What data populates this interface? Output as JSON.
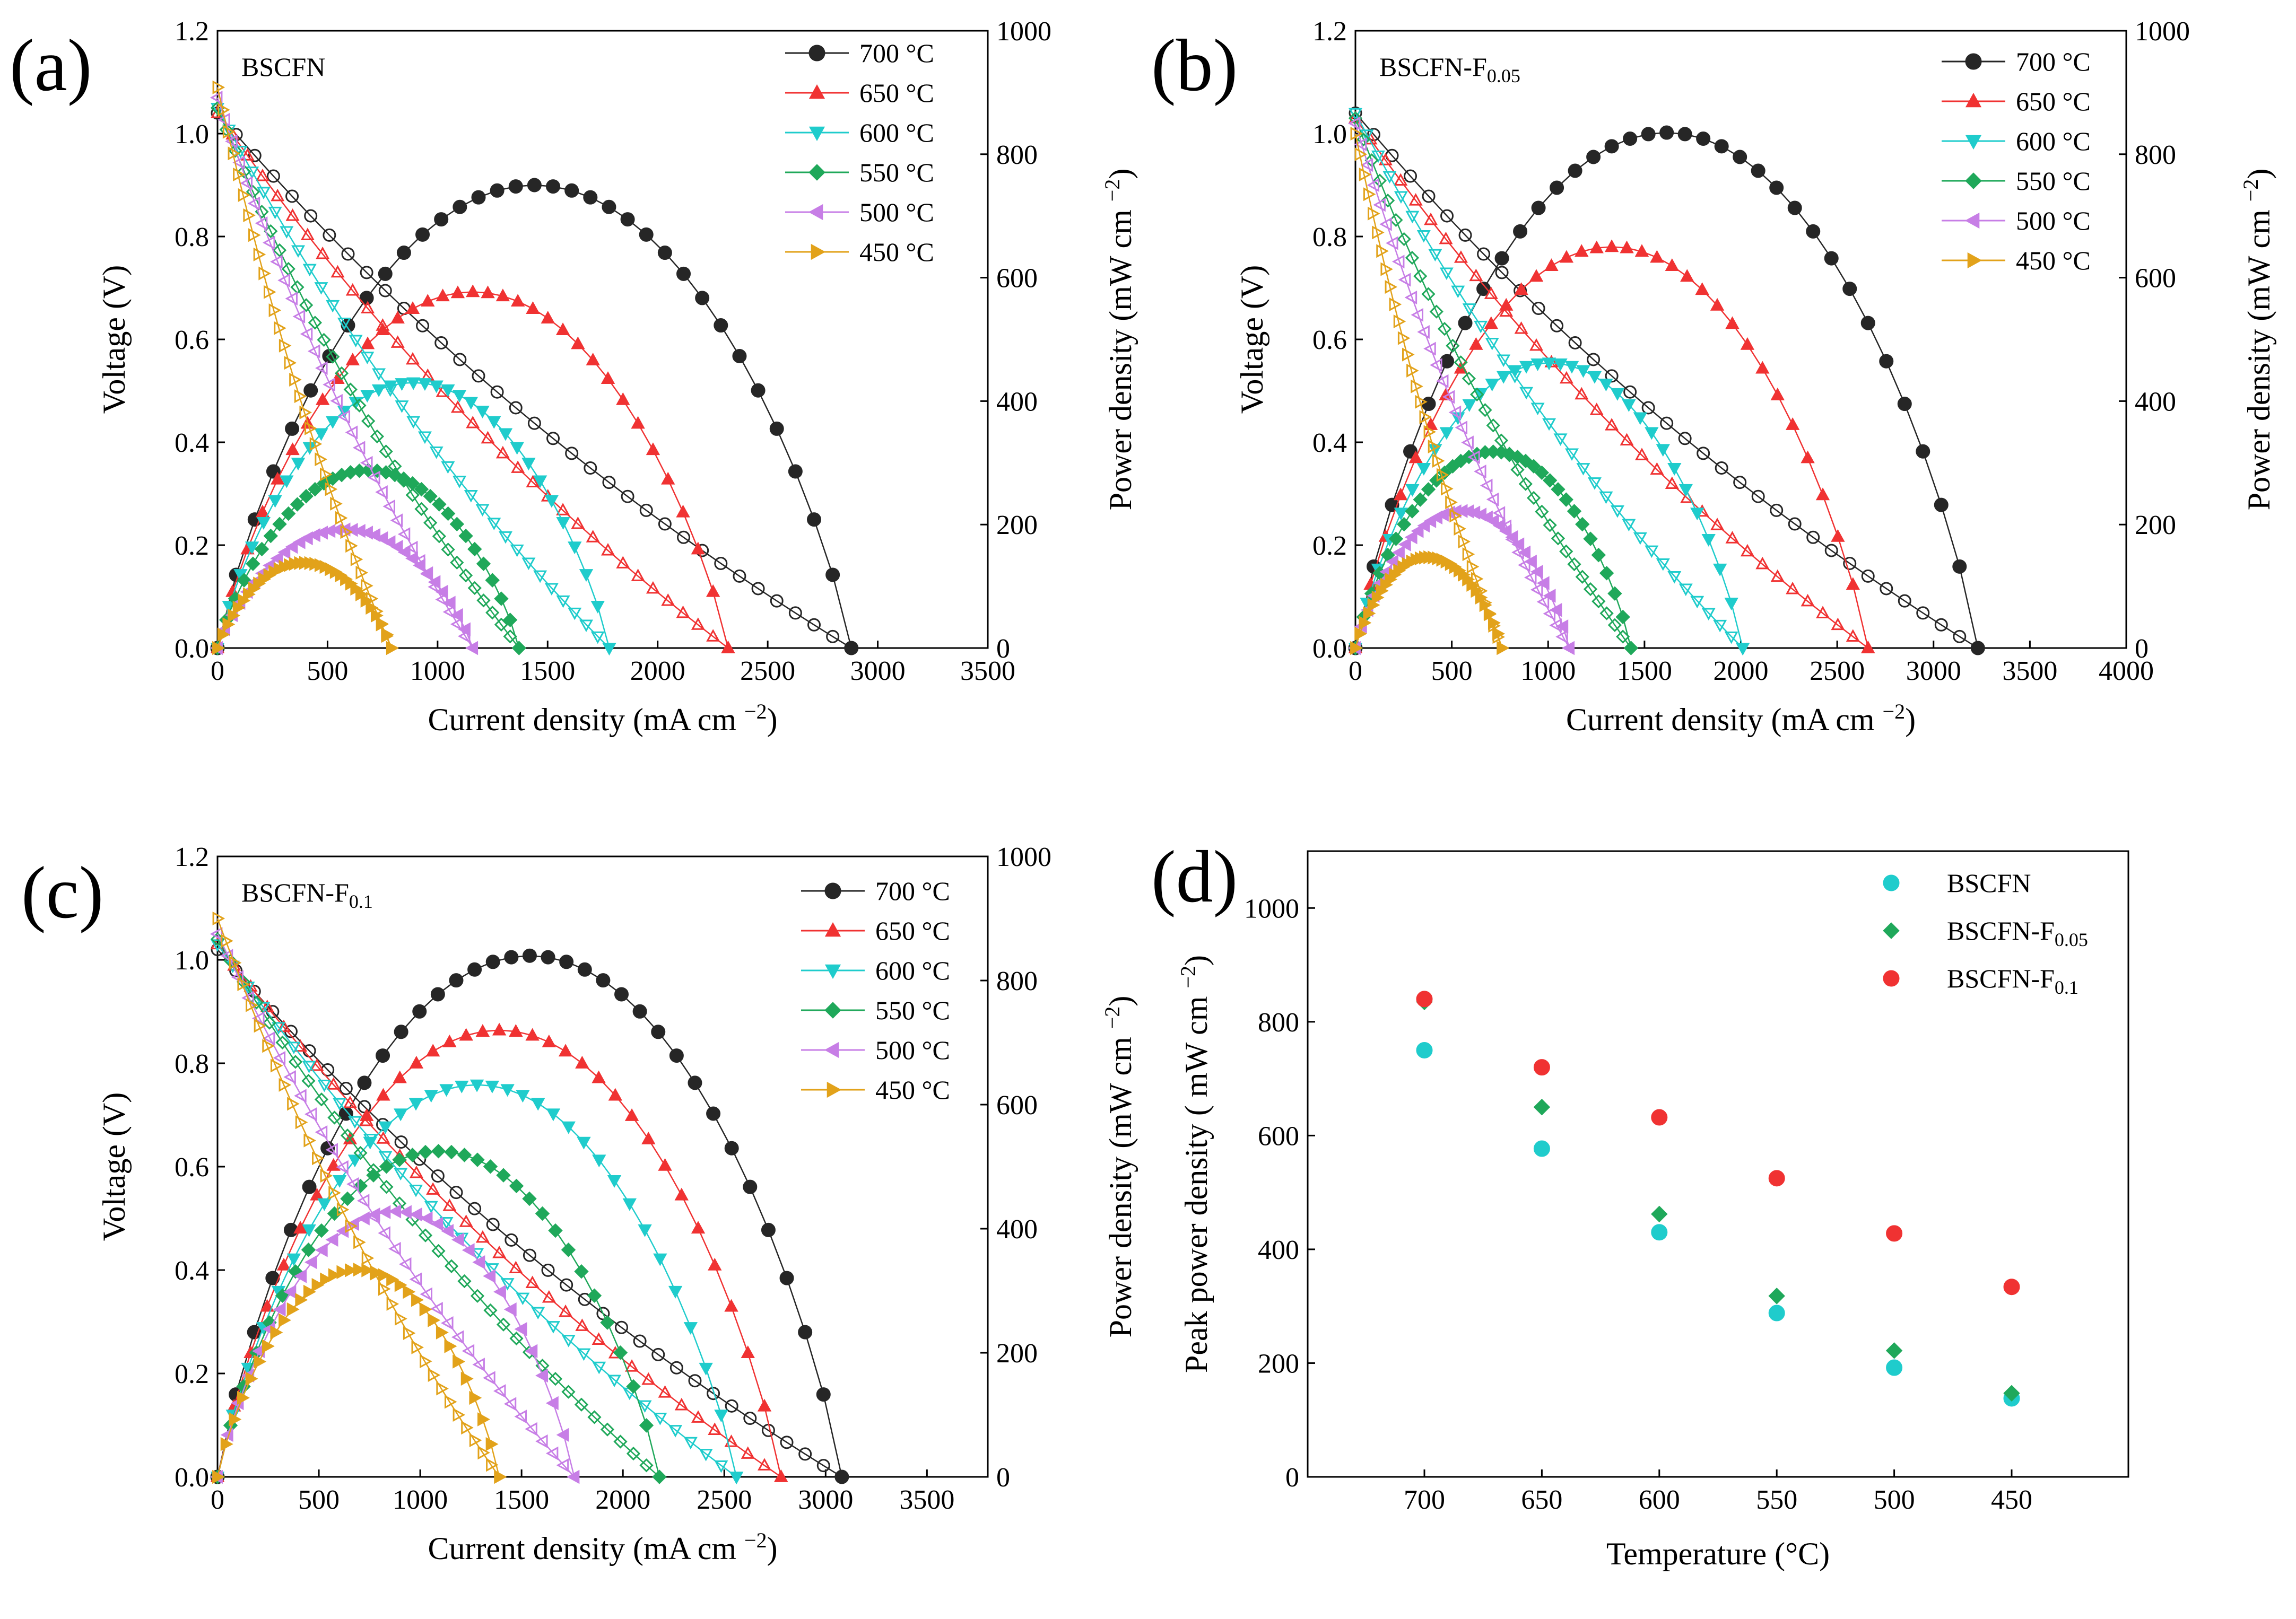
{
  "figure_labels": {
    "a": "(a)",
    "b": "(b)",
    "c": "(c)",
    "d": "(d)",
    "current_density": "Current density (mA cm",
    "voltage": "Voltage (V)",
    "power_density": "Power density (mW cm",
    "peak_power_density": "Peak power density ( mW cm",
    "temperature": "Temperature (°C)",
    "superscript": "−2",
    "unit_close": ")",
    "bscfn_base": "BSCFN",
    "f005_sub": "0.05",
    "f01_sub": "0.1",
    "f_prefix": "-F"
  },
  "chart_data": [
    {
      "panel": "a",
      "type": "line",
      "title": "BSCFN",
      "xlabel": "Current density (mA cm−2)",
      "ylabel": "Voltage (V)",
      "y2label": "Power density (mW cm−2)",
      "xlim": [
        0,
        3500
      ],
      "ylim": [
        0,
        1.2
      ],
      "y2lim": [
        0,
        1000
      ],
      "xticks": [
        "0",
        "500",
        "1000",
        "1500",
        "2000",
        "2500",
        "3000",
        "3500"
      ],
      "yticks": [
        "0.0",
        "0.2",
        "0.4",
        "0.6",
        "0.8",
        "1.0",
        "1.2"
      ],
      "y2ticks": [
        "0",
        "200",
        "400",
        "600",
        "800",
        "1000"
      ],
      "series": [
        {
          "name": "700 °C",
          "color": "#262626",
          "marker": "circle",
          "ocv": 1.04,
          "imax": 2880,
          "pmax": 750
        },
        {
          "name": "650 °C",
          "color": "#f03232",
          "marker": "triangle-up",
          "ocv": 1.04,
          "imax": 2320,
          "pmax": 577
        },
        {
          "name": "600 °C",
          "color": "#1fcccc",
          "marker": "triangle-down",
          "ocv": 1.05,
          "imax": 1780,
          "pmax": 430
        },
        {
          "name": "550 °C",
          "color": "#1fa85a",
          "marker": "diamond",
          "ocv": 1.05,
          "imax": 1370,
          "pmax": 288
        },
        {
          "name": "500 °C",
          "color": "#c77ee6",
          "marker": "triangle-left",
          "ocv": 1.07,
          "imax": 1160,
          "pmax": 192
        },
        {
          "name": "450 °C",
          "color": "#e2a21a",
          "marker": "triangle-right",
          "ocv": 1.09,
          "imax": 790,
          "pmax": 138
        }
      ]
    },
    {
      "panel": "b",
      "type": "line",
      "title": "BSCFN-F0.05",
      "xlabel": "Current density (mA cm−2)",
      "ylabel": "Voltage (V)",
      "y2label": "Power density (mW cm−2)",
      "xlim": [
        0,
        4000
      ],
      "ylim": [
        0,
        1.2
      ],
      "y2lim": [
        0,
        1000
      ],
      "xticks": [
        "0",
        "500",
        "1000",
        "1500",
        "2000",
        "2500",
        "3000",
        "3500",
        "4000"
      ],
      "yticks": [
        "0.0",
        "0.2",
        "0.4",
        "0.6",
        "0.8",
        "1.0",
        "1.2"
      ],
      "y2ticks": [
        "0",
        "200",
        "400",
        "600",
        "800",
        "1000"
      ],
      "series": [
        {
          "name": "700 °C",
          "color": "#262626",
          "marker": "circle",
          "ocv": 1.04,
          "imax": 3230,
          "pmax": 835
        },
        {
          "name": "650 °C",
          "color": "#f03232",
          "marker": "triangle-up",
          "ocv": 1.03,
          "imax": 2660,
          "pmax": 650
        },
        {
          "name": "600 °C",
          "color": "#1fcccc",
          "marker": "triangle-down",
          "ocv": 1.04,
          "imax": 2010,
          "pmax": 462
        },
        {
          "name": "550 °C",
          "color": "#1fa85a",
          "marker": "diamond",
          "ocv": 1.03,
          "imax": 1430,
          "pmax": 318
        },
        {
          "name": "500 °C",
          "color": "#c77ee6",
          "marker": "triangle-left",
          "ocv": 1.02,
          "imax": 1110,
          "pmax": 222
        },
        {
          "name": "450 °C",
          "color": "#e2a21a",
          "marker": "triangle-right",
          "ocv": 1.0,
          "imax": 760,
          "pmax": 147
        }
      ]
    },
    {
      "panel": "c",
      "type": "line",
      "title": "BSCFN-F0.1",
      "xlabel": "Current density (mA cm−2)",
      "ylabel": "Voltage (V)",
      "y2label": "Power density (mW cm−2)",
      "xlim": [
        0,
        3800
      ],
      "ylim": [
        0,
        1.2
      ],
      "y2lim": [
        0,
        1000
      ],
      "xticks": [
        "0",
        "500",
        "1000",
        "1500",
        "2000",
        "2500",
        "3000",
        "3500"
      ],
      "yticks": [
        "0.0",
        "0.2",
        "0.4",
        "0.6",
        "0.8",
        "1.0",
        "1.2"
      ],
      "y2ticks": [
        "0",
        "200",
        "400",
        "600",
        "800",
        "1000"
      ],
      "series": [
        {
          "name": "700 °C",
          "color": "#262626",
          "marker": "circle",
          "ocv": 1.02,
          "imax": 3080,
          "pmax": 840
        },
        {
          "name": "650 °C",
          "color": "#f03232",
          "marker": "triangle-up",
          "ocv": 1.03,
          "imax": 2780,
          "pmax": 720
        },
        {
          "name": "600 °C",
          "color": "#1fcccc",
          "marker": "triangle-down",
          "ocv": 1.03,
          "imax": 2560,
          "pmax": 632
        },
        {
          "name": "550 °C",
          "color": "#1fa85a",
          "marker": "diamond",
          "ocv": 1.04,
          "imax": 2180,
          "pmax": 525
        },
        {
          "name": "500 °C",
          "color": "#c77ee6",
          "marker": "triangle-left",
          "ocv": 1.05,
          "imax": 1760,
          "pmax": 428
        },
        {
          "name": "450 °C",
          "color": "#e2a21a",
          "marker": "triangle-right",
          "ocv": 1.08,
          "imax": 1390,
          "pmax": 334
        }
      ]
    },
    {
      "panel": "d",
      "type": "scatter",
      "xlabel": "Temperature (°C)",
      "ylabel": "Peak power density ( mW cm−2)",
      "categories": [
        "700",
        "650",
        "600",
        "550",
        "500",
        "450"
      ],
      "ylim": [
        0,
        1100
      ],
      "yticks": [
        "0",
        "200",
        "400",
        "600",
        "800",
        "1000"
      ],
      "series": [
        {
          "name": "BSCFN",
          "color": "#1fcccc",
          "marker": "circle",
          "values": [
            750,
            577,
            430,
            288,
            192,
            138
          ]
        },
        {
          "name": "BSCFN-F0.05",
          "color": "#1fa85a",
          "marker": "diamond",
          "values": [
            835,
            650,
            462,
            318,
            222,
            147
          ]
        },
        {
          "name": "BSCFN-F0.1",
          "color": "#f03232",
          "marker": "circle",
          "values": [
            840,
            720,
            632,
            525,
            428,
            334
          ]
        }
      ]
    }
  ]
}
